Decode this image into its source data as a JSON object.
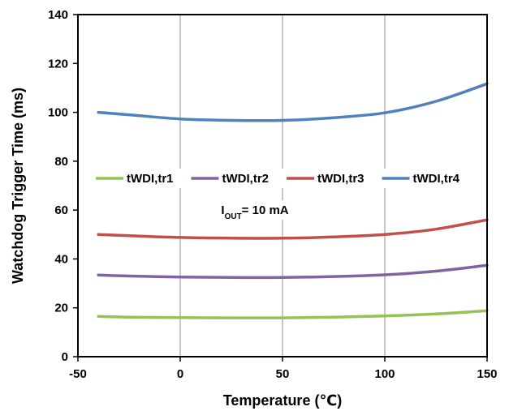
{
  "chart_data": {
    "type": "line",
    "xlabel": "Temperature (℃)",
    "ylabel": "Watchdog Trigger Time (ms)",
    "xlim": [
      -50,
      150
    ],
    "ylim": [
      0,
      140
    ],
    "x_ticks": [
      "-50",
      "0",
      "50",
      "100",
      "150"
    ],
    "y_ticks": [
      "0",
      "20",
      "40",
      "60",
      "80",
      "100",
      "120",
      "140"
    ],
    "x_tick_values": [
      -50,
      0,
      50,
      100,
      150
    ],
    "y_tick_values": [
      0,
      20,
      40,
      60,
      80,
      100,
      120,
      140
    ],
    "grid": {
      "vertical": true,
      "horizontal": false
    },
    "legend_position": "middle",
    "annotation": {
      "main": "I",
      "sub": "OUT",
      "rest": "= 10 mA"
    },
    "x": [
      -40,
      -25,
      0,
      25,
      50,
      75,
      100,
      125,
      150
    ],
    "series": [
      {
        "name": "tWDI,tr1",
        "color": "#92c353",
        "values": [
          16.5,
          16.2,
          16.0,
          15.9,
          15.9,
          16.2,
          16.7,
          17.5,
          18.8
        ]
      },
      {
        "name": "tWDI,tr2",
        "color": "#8064a2",
        "values": [
          33.4,
          33.0,
          32.6,
          32.4,
          32.4,
          32.8,
          33.5,
          35.0,
          37.4
        ]
      },
      {
        "name": "tWDI,tr3",
        "color": "#c0504d",
        "values": [
          50.0,
          49.5,
          48.8,
          48.5,
          48.5,
          49.0,
          50.0,
          52.2,
          56.0
        ]
      },
      {
        "name": "tWDI,tr4",
        "color": "#4f81bd",
        "values": [
          100.0,
          99.0,
          97.3,
          96.7,
          96.7,
          97.8,
          99.8,
          104.5,
          111.7
        ]
      }
    ]
  }
}
